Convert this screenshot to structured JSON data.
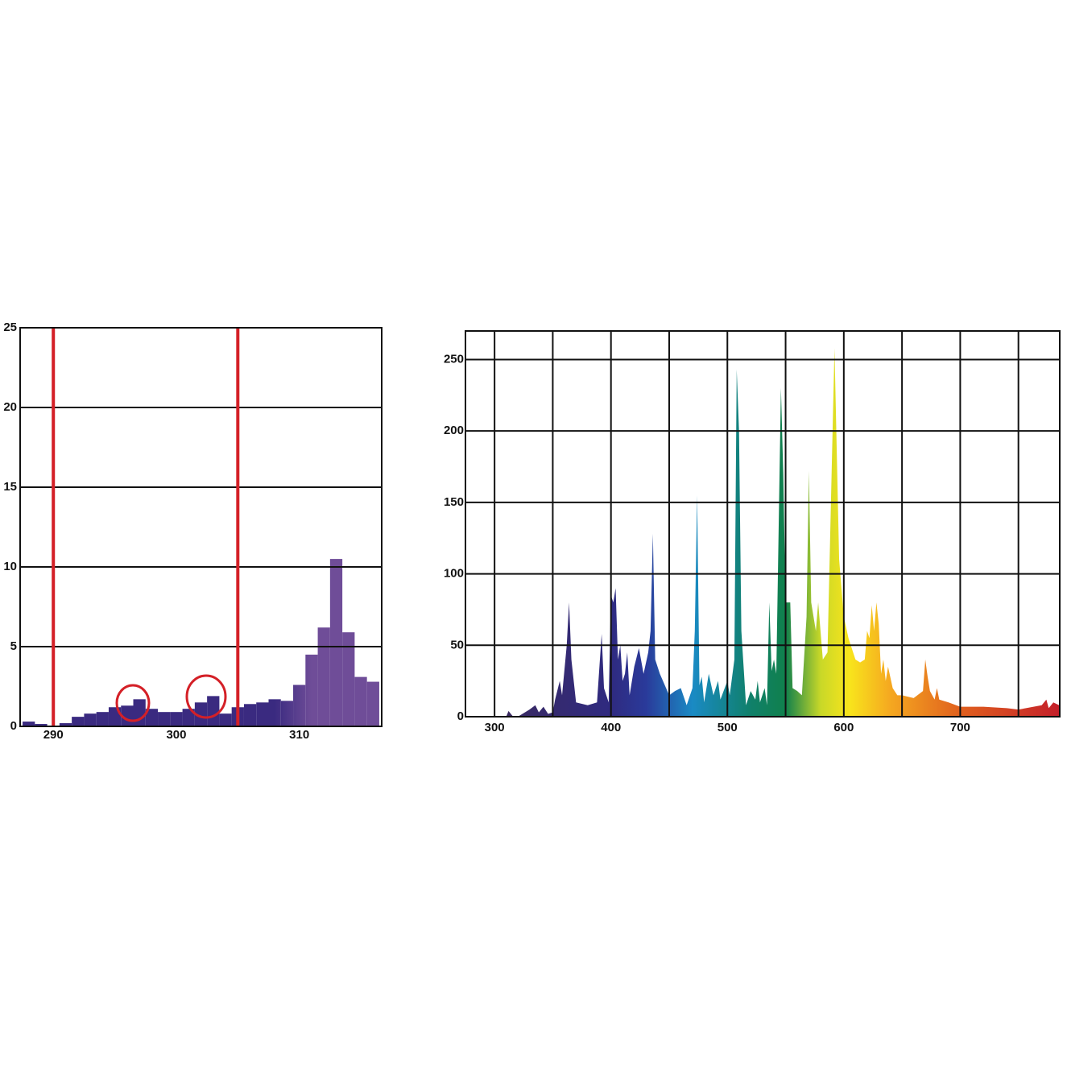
{
  "chart_data": [
    {
      "type": "histogram",
      "bins": [
        287.5,
        288.5,
        289.5,
        290.5,
        291.5,
        292.5,
        293.5,
        294.5,
        295.5,
        296.5,
        297.5,
        298.5,
        299.5,
        300.5,
        301.5,
        302.5,
        303.5,
        304.5,
        305.5,
        306.5,
        307.5,
        308.5,
        309.5,
        310.5,
        311.5,
        312.5,
        313.5,
        314.5,
        315.5,
        316.5
      ],
      "values": [
        0.3,
        0.15,
        0.05,
        0.2,
        0.6,
        0.8,
        0.9,
        1.2,
        1.3,
        1.7,
        1.1,
        0.9,
        0.9,
        1.1,
        1.5,
        1.9,
        0.8,
        1.2,
        1.4,
        1.5,
        1.7,
        1.6,
        2.6,
        4.5,
        6.2,
        10.5,
        5.9,
        3.1,
        2.8
      ],
      "gradient": [
        {
          "offset": 308,
          "color": "#3a2a80"
        },
        {
          "offset": 311,
          "color": "#6f4d98"
        }
      ],
      "xlim": [
        287.3,
        316.7
      ],
      "xticks": [
        290,
        300,
        310
      ],
      "ylim": [
        0,
        25
      ],
      "yticks": [
        0,
        5,
        10,
        15,
        20,
        25
      ],
      "markers": [
        290,
        305
      ],
      "marker_color": "#d42027",
      "grid": true
    },
    {
      "type": "area",
      "x": [
        310,
        312,
        316,
        320,
        330,
        335,
        338,
        342,
        346,
        350,
        352,
        356,
        358,
        362,
        364,
        366,
        370,
        380,
        388,
        392,
        394,
        398,
        400,
        402,
        404,
        406,
        408,
        410,
        412,
        414,
        416,
        420,
        424,
        428,
        432,
        434,
        436,
        438,
        442,
        450,
        455,
        460,
        465,
        470,
        472,
        474,
        476,
        478,
        480,
        484,
        488,
        492,
        494,
        500,
        502,
        506,
        508,
        510,
        512,
        516,
        520,
        524,
        526,
        528,
        532,
        534,
        536,
        538,
        540,
        542,
        546,
        548,
        550,
        554,
        556,
        560,
        564,
        568,
        570,
        572,
        576,
        578,
        582,
        586,
        592,
        596,
        600,
        604,
        610,
        614,
        618,
        620,
        622,
        624,
        626,
        628,
        630,
        632,
        634,
        636,
        638,
        642,
        646,
        650,
        660,
        668,
        670,
        672,
        674,
        678,
        680,
        682,
        690,
        700,
        720,
        740,
        750,
        770,
        774,
        776,
        780,
        785
      ],
      "values": [
        0,
        4,
        0,
        0,
        5,
        8,
        3,
        7,
        2,
        3,
        12,
        25,
        15,
        50,
        80,
        40,
        10,
        8,
        10,
        58,
        20,
        10,
        85,
        80,
        90,
        40,
        50,
        25,
        30,
        45,
        15,
        35,
        48,
        30,
        45,
        60,
        128,
        40,
        30,
        15,
        18,
        20,
        8,
        20,
        60,
        155,
        22,
        28,
        10,
        30,
        15,
        25,
        12,
        25,
        15,
        40,
        243,
        200,
        60,
        8,
        18,
        12,
        25,
        10,
        20,
        8,
        80,
        32,
        40,
        30,
        230,
        170,
        80,
        80,
        20,
        18,
        15,
        70,
        172,
        80,
        60,
        80,
        40,
        45,
        258,
        110,
        70,
        55,
        40,
        38,
        40,
        60,
        55,
        78,
        60,
        80,
        65,
        30,
        40,
        25,
        35,
        20,
        15,
        15,
        13,
        18,
        40,
        28,
        18,
        12,
        20,
        12,
        10,
        7,
        7,
        6,
        5,
        8,
        12,
        6,
        10,
        8
      ],
      "gradient": [
        {
          "offset": 300,
          "color": "#3b2a5e"
        },
        {
          "offset": 400,
          "color": "#2f2a80"
        },
        {
          "offset": 430,
          "color": "#2a3a9a"
        },
        {
          "offset": 470,
          "color": "#1a8ac4"
        },
        {
          "offset": 520,
          "color": "#10806a"
        },
        {
          "offset": 550,
          "color": "#10804c"
        },
        {
          "offset": 580,
          "color": "#c8d828"
        },
        {
          "offset": 605,
          "color": "#f8e41c"
        },
        {
          "offset": 640,
          "color": "#f5a820"
        },
        {
          "offset": 700,
          "color": "#e0601e"
        },
        {
          "offset": 785,
          "color": "#c4202a"
        }
      ],
      "xlim": [
        275,
        785.5
      ],
      "xticks": [
        300,
        400,
        500,
        600,
        700
      ],
      "xgrid": [
        350,
        450,
        550,
        650,
        750
      ],
      "ylim": [
        0,
        270
      ],
      "yticks": [
        0,
        50,
        100,
        150,
        200,
        250
      ],
      "grid": true
    }
  ]
}
